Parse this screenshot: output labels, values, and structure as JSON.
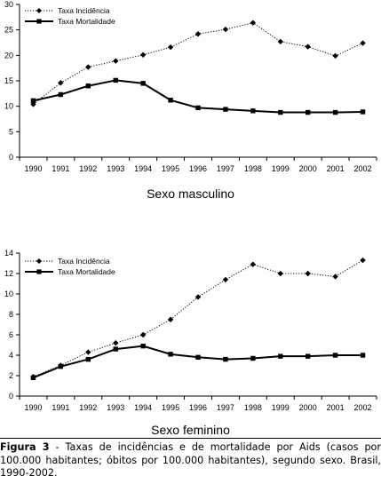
{
  "chart_data": [
    {
      "type": "line",
      "categories": [
        "1990",
        "1991",
        "1992",
        "1993",
        "1994",
        "1995",
        "1996",
        "1997",
        "1998",
        "1999",
        "2000",
        "2001",
        "2002"
      ],
      "ylim": [
        0,
        30
      ],
      "yticks": [
        "0",
        "5",
        "10",
        "15",
        "20",
        "25",
        "30"
      ],
      "grid": false,
      "legend_position": "top-left",
      "series": [
        {
          "name": "Taxa Incidência",
          "style": "dotted",
          "marker": "diamond",
          "color": "#000000",
          "values": [
            10.4,
            14.6,
            17.7,
            18.9,
            20.1,
            21.6,
            24.2,
            25.1,
            26.4,
            22.7,
            21.7,
            19.9,
            22.4
          ]
        },
        {
          "name": "Taxa Mortalidade",
          "style": "solid",
          "marker": "square",
          "color": "#000000",
          "values": [
            11.1,
            12.3,
            14.0,
            15.1,
            14.5,
            11.2,
            9.7,
            9.4,
            9.1,
            8.8,
            8.8,
            8.8,
            8.9
          ]
        }
      ],
      "subtitle": "Sexo masculino"
    },
    {
      "type": "line",
      "categories": [
        "1990",
        "1991",
        "1992",
        "1993",
        "1994",
        "1995",
        "1996",
        "1997",
        "1998",
        "1999",
        "2000",
        "2001",
        "2002"
      ],
      "ylim": [
        0,
        14
      ],
      "yticks": [
        "0",
        "2",
        "4",
        "6",
        "8",
        "10",
        "12",
        "14"
      ],
      "grid": false,
      "legend_position": "top-left",
      "series": [
        {
          "name": "Taxa Incidência",
          "style": "dotted",
          "marker": "diamond",
          "color": "#000000",
          "values": [
            1.9,
            3.0,
            4.3,
            5.2,
            6.0,
            7.5,
            9.7,
            11.4,
            12.9,
            12.0,
            12.0,
            11.7,
            13.3
          ]
        },
        {
          "name": "Taxa Mortalidade",
          "style": "solid",
          "marker": "square",
          "color": "#000000",
          "values": [
            1.8,
            2.9,
            3.6,
            4.6,
            4.9,
            4.1,
            3.8,
            3.6,
            3.7,
            3.9,
            3.9,
            4.0,
            4.0
          ]
        }
      ],
      "subtitle": "Sexo feminino"
    }
  ],
  "caption": {
    "label": "Figura 3",
    "text": " - Taxas de incidências e de mortalidade por Aids (casos por 100.000 habitantes; óbitos por 100.000 habitantes), segundo sexo. Brasil, 1990-2002."
  }
}
